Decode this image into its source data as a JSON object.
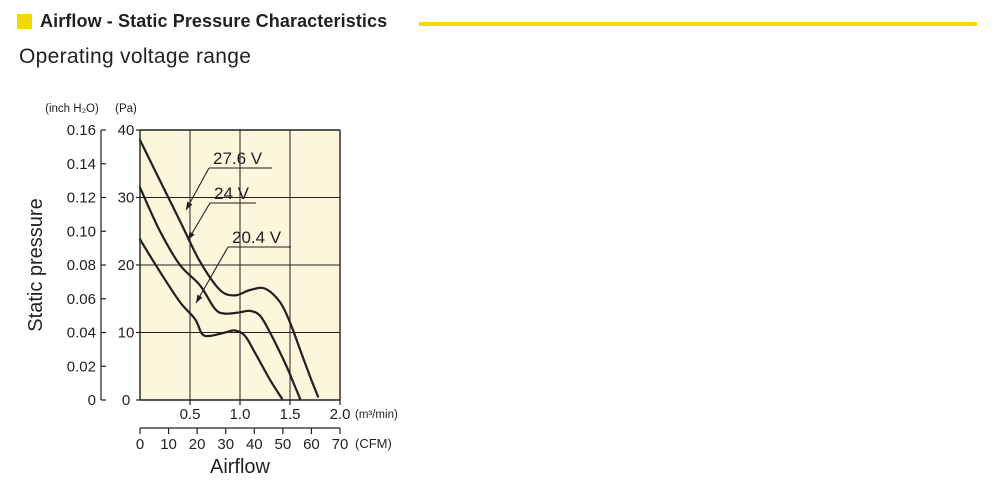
{
  "header": {
    "title": "Airflow - Static Pressure Characteristics",
    "accent_color": "#f5d800"
  },
  "subtitle": "Operating voltage range",
  "chart_data": {
    "type": "line",
    "ylabel": "Static pressure",
    "xlabel": "Airflow",
    "y_unit_inch": "(inch H₂O)",
    "y_unit_pa": "(Pa)",
    "x_unit_m3": "(m³/min)",
    "x_unit_cfm": "(CFM)",
    "xlim": [
      0,
      2.0
    ],
    "ylim": [
      0,
      40
    ],
    "x_ticks": [
      "0.5",
      "1.0",
      "1.5",
      "2.0"
    ],
    "y_ticks_pa": [
      "0",
      "10",
      "20",
      "30",
      "40"
    ],
    "y_ticks_inch": [
      "0",
      "0.02",
      "0.04",
      "0.06",
      "0.08",
      "0.10",
      "0.12",
      "0.14",
      "0.16"
    ],
    "cfm_ticks": [
      "0",
      "10",
      "20",
      "30",
      "40",
      "50",
      "60",
      "70"
    ],
    "grid": true,
    "plot_background": "#fbf6dc",
    "series": [
      {
        "name": "27.6 V",
        "points": [
          [
            0,
            38.5
          ],
          [
            0.2,
            32.5
          ],
          [
            0.4,
            26.5
          ],
          [
            0.6,
            20.5
          ],
          [
            0.8,
            16.3
          ],
          [
            0.95,
            15.5
          ],
          [
            1.1,
            16.3
          ],
          [
            1.25,
            16.5
          ],
          [
            1.4,
            14.5
          ],
          [
            1.5,
            11.5
          ],
          [
            1.6,
            7.5
          ],
          [
            1.7,
            3.5
          ],
          [
            1.78,
            0.5
          ]
        ]
      },
      {
        "name": "24 V",
        "points": [
          [
            0,
            31.5
          ],
          [
            0.2,
            25.0
          ],
          [
            0.4,
            20.0
          ],
          [
            0.6,
            17.0
          ],
          [
            0.75,
            13.5
          ],
          [
            0.85,
            12.8
          ],
          [
            1.0,
            13.0
          ],
          [
            1.1,
            13.2
          ],
          [
            1.2,
            12.5
          ],
          [
            1.3,
            10.0
          ],
          [
            1.45,
            5.5
          ],
          [
            1.55,
            2.0
          ],
          [
            1.6,
            0.2
          ]
        ]
      },
      {
        "name": "20.4 V",
        "points": [
          [
            0,
            23.8
          ],
          [
            0.2,
            19.0
          ],
          [
            0.4,
            14.5
          ],
          [
            0.55,
            12.0
          ],
          [
            0.62,
            9.8
          ],
          [
            0.7,
            9.5
          ],
          [
            0.85,
            10.0
          ],
          [
            0.95,
            10.3
          ],
          [
            1.05,
            9.5
          ],
          [
            1.15,
            7.0
          ],
          [
            1.3,
            3.0
          ],
          [
            1.42,
            0.2
          ]
        ]
      }
    ],
    "annotations": [
      "27.6 V",
      "24 V",
      "20.4 V"
    ]
  }
}
